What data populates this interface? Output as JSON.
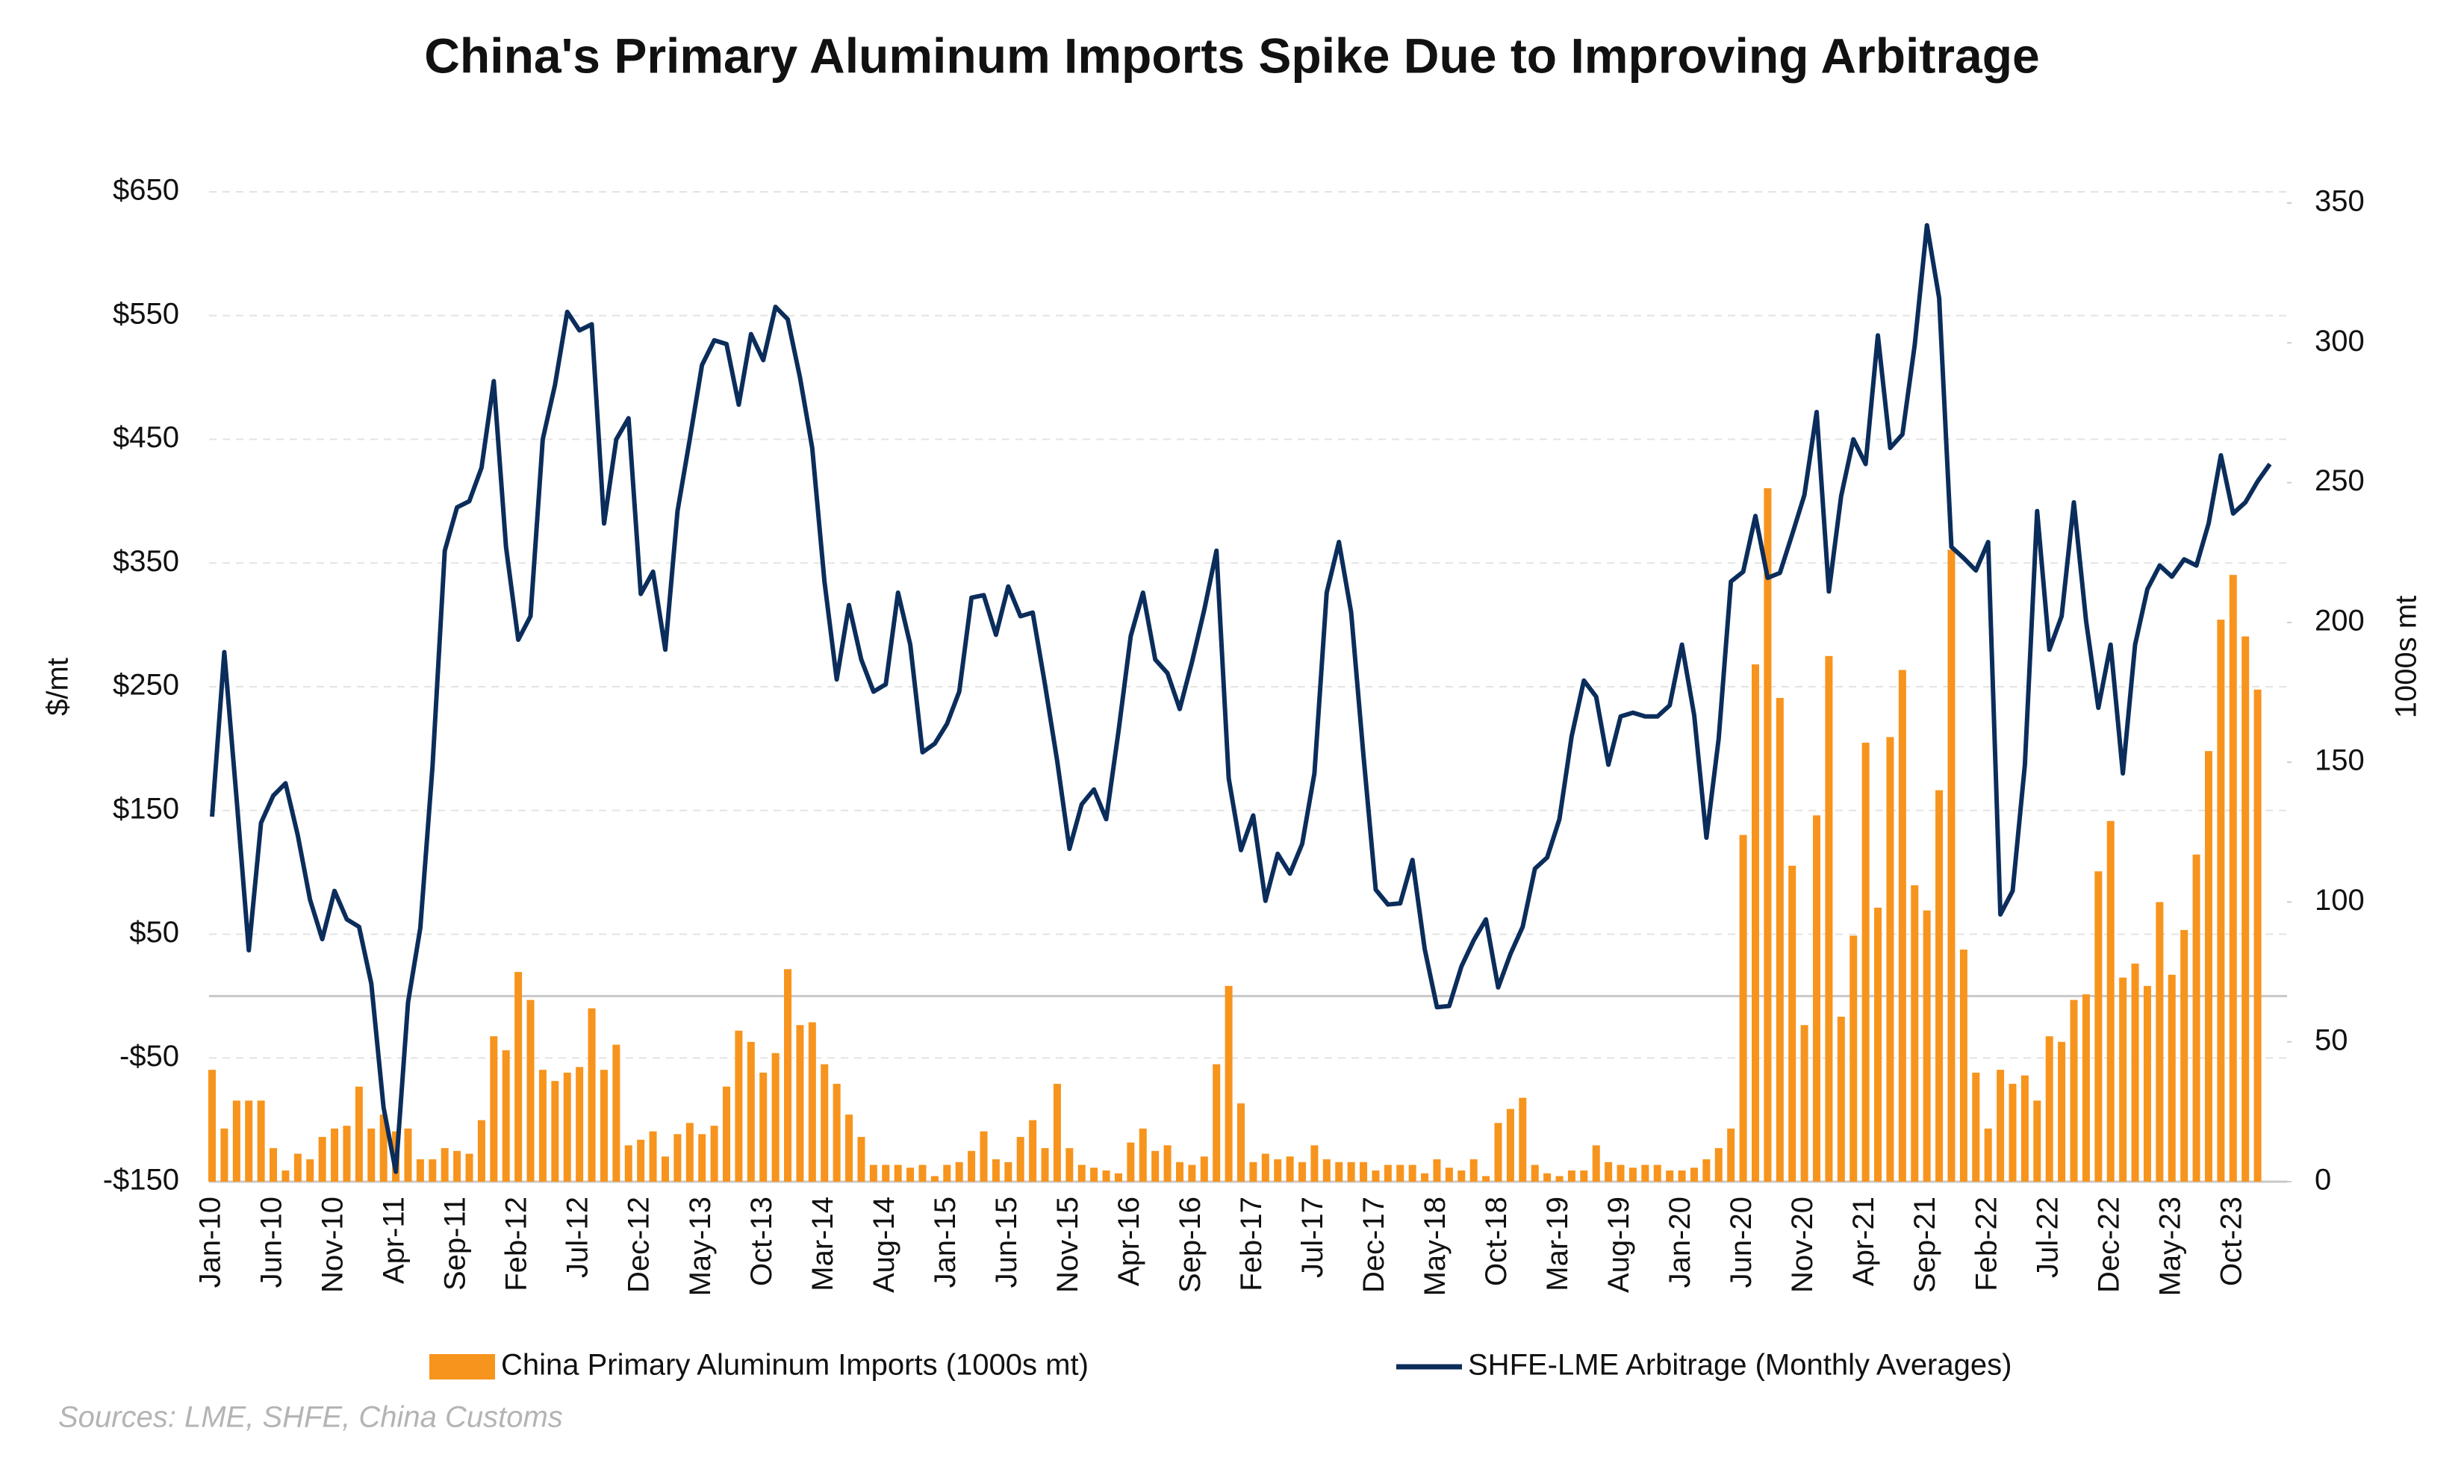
{
  "chart_data": {
    "type": "bar-line",
    "title": "China's Primary Aluminum Imports Spike Due to Improving Arbitrage",
    "source": "Sources: LME, SHFE, China Customs",
    "y_label": "$/mt",
    "y2_label": "1000s mt",
    "ylim": [
      -150,
      650
    ],
    "yticks": [
      {
        "value": -150,
        "label": "-$150"
      },
      {
        "value": -50,
        "label": "-$50"
      },
      {
        "value": 50,
        "label": "$50"
      },
      {
        "value": 150,
        "label": "$150"
      },
      {
        "value": 250,
        "label": "$250"
      },
      {
        "value": 350,
        "label": "$350"
      },
      {
        "value": 450,
        "label": "$450"
      },
      {
        "value": 550,
        "label": "$550"
      },
      {
        "value": 650,
        "label": "$650"
      }
    ],
    "y2lim": [
      0,
      354
    ],
    "y2ticks": [
      0,
      50,
      100,
      150,
      200,
      250,
      300,
      350
    ],
    "grid": true,
    "categories": [
      "Jan-10",
      null,
      null,
      null,
      null,
      "Jun-10",
      null,
      null,
      null,
      null,
      "Nov-10",
      null,
      null,
      null,
      null,
      "Apr-11",
      null,
      null,
      null,
      null,
      "Sep-11",
      null,
      null,
      null,
      null,
      "Feb-12",
      null,
      null,
      null,
      null,
      "Jul-12",
      null,
      null,
      null,
      null,
      "Dec-12",
      null,
      null,
      null,
      null,
      "May-13",
      null,
      null,
      null,
      null,
      "Oct-13",
      null,
      null,
      null,
      null,
      "Mar-14",
      null,
      null,
      null,
      null,
      "Aug-14",
      null,
      null,
      null,
      null,
      "Jan-15",
      null,
      null,
      null,
      null,
      "Jun-15",
      null,
      null,
      null,
      null,
      "Nov-15",
      null,
      null,
      null,
      null,
      "Apr-16",
      null,
      null,
      null,
      null,
      "Sep-16",
      null,
      null,
      null,
      null,
      "Feb-17",
      null,
      null,
      null,
      null,
      "Jul-17",
      null,
      null,
      null,
      null,
      "Dec-17",
      null,
      null,
      null,
      null,
      "May-18",
      null,
      null,
      null,
      null,
      "Oct-18",
      null,
      null,
      null,
      null,
      "Mar-19",
      null,
      null,
      null,
      null,
      "Aug-19",
      null,
      null,
      null,
      null,
      "Jan-20",
      null,
      null,
      null,
      null,
      "Jun-20",
      null,
      null,
      null,
      null,
      "Nov-20",
      null,
      null,
      null,
      null,
      "Apr-21",
      null,
      null,
      null,
      null,
      "Sep-21",
      null,
      null,
      null,
      null,
      "Feb-22",
      null,
      null,
      null,
      null,
      "Jul-22",
      null,
      null,
      null,
      null,
      "Dec-22",
      null,
      null,
      null,
      null,
      "May-23",
      null,
      null,
      null,
      null,
      "Oct-23",
      null,
      null,
      null
    ],
    "series": [
      {
        "name": "China Primary Aluminum Imports (1000s mt)",
        "type": "bar",
        "axis": "y2",
        "color": "#f7941d",
        "values": [
          40,
          19,
          29,
          29,
          29,
          12,
          4,
          10,
          8,
          16,
          19,
          20,
          34,
          19,
          24,
          18,
          19,
          8,
          8,
          12,
          11,
          10,
          22,
          52,
          47,
          75,
          65,
          40,
          36,
          39,
          41,
          62,
          40,
          49,
          13,
          15,
          18,
          9,
          17,
          21,
          17,
          20,
          34,
          54,
          50,
          39,
          46,
          76,
          56,
          57,
          42,
          35,
          24,
          16,
          6,
          6,
          6,
          5,
          6,
          2,
          6,
          7,
          11,
          18,
          8,
          7,
          16,
          22,
          12,
          35,
          12,
          6,
          5,
          4,
          3,
          14,
          19,
          11,
          13,
          7,
          6,
          9,
          42,
          70,
          28,
          7,
          10,
          8,
          9,
          7,
          13,
          8,
          7,
          7,
          7,
          4,
          6,
          6,
          6,
          3,
          8,
          5,
          4,
          8,
          2,
          21,
          26,
          30,
          6,
          3,
          2,
          4,
          4,
          13,
          7,
          6,
          5,
          6,
          6,
          4,
          4,
          5,
          8,
          12,
          19,
          124,
          185,
          248,
          173,
          113,
          56,
          131,
          188,
          59,
          88,
          157,
          98,
          159,
          183,
          106,
          97,
          140,
          226,
          83,
          39,
          19,
          40,
          35,
          38,
          29,
          52,
          50,
          65,
          67,
          111,
          129,
          73,
          78,
          70,
          100,
          74,
          90,
          117,
          154,
          201,
          217,
          195,
          176,
          null
        ]
      },
      {
        "name": "SHFE-LME Arbitrage (Monthly Averages)",
        "type": "line",
        "color": "#0b2d5b",
        "values": [
          145,
          278,
          160,
          37,
          140,
          162,
          172,
          130,
          78,
          46,
          85,
          62,
          56,
          10,
          -90,
          -142,
          -5,
          55,
          186,
          360,
          395,
          400,
          427,
          497,
          363,
          288,
          307,
          450,
          494,
          553,
          538,
          543,
          382,
          450,
          467,
          325,
          343,
          280,
          392,
          450,
          510,
          530,
          527,
          478,
          535,
          514,
          557,
          547,
          500,
          443,
          335,
          256,
          316,
          272,
          246,
          252,
          326,
          284,
          197,
          204,
          220,
          246,
          322,
          324,
          292,
          331,
          307,
          310,
          252,
          190,
          119,
          155,
          167,
          143,
          214,
          291,
          326,
          272,
          261,
          232,
          270,
          312,
          360,
          176,
          118,
          146,
          77,
          115,
          99,
          123,
          180,
          326,
          367,
          310,
          195,
          86,
          74,
          75,
          110,
          38,
          -9,
          -8,
          24,
          45,
          62,
          7,
          34,
          56,
          103,
          112,
          143,
          210,
          255,
          242,
          187,
          226,
          229,
          226,
          226,
          235,
          284,
          227,
          128,
          208,
          335,
          343,
          388,
          338,
          342,
          373,
          405,
          472,
          327,
          404,
          450,
          430,
          534,
          443,
          454,
          526,
          623,
          564,
          363,
          354,
          344,
          367,
          66,
          85,
          187,
          392,
          280,
          307,
          399,
          303,
          233,
          284,
          180,
          284,
          329,
          348,
          339,
          353,
          348,
          382,
          437,
          390,
          399,
          416,
          430
        ]
      }
    ]
  }
}
